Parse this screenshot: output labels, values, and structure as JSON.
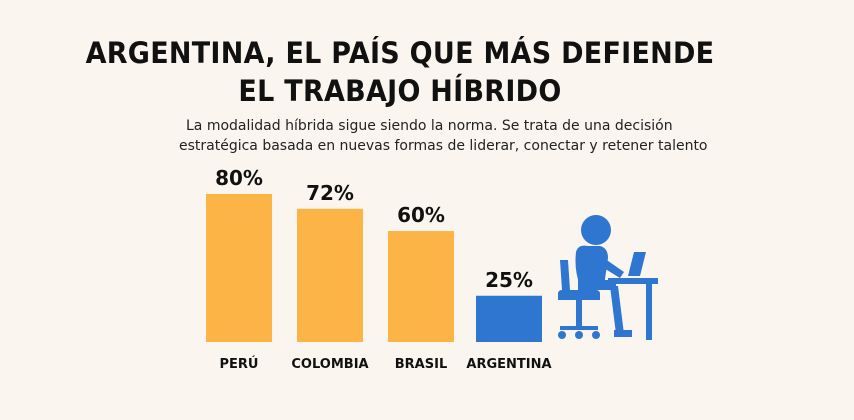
{
  "title": {
    "line1": "ARGENTINA, EL PAÍS QUE MÁS DEFIENDE",
    "line2": "EL TRABAJO HÍBRIDO"
  },
  "subtitle": {
    "line1": "La modalidad híbrida sigue siendo la norma. Se trata de una decisión",
    "line2": "estratégica basada en nuevas formas de liderar, conectar y retener talento"
  },
  "colors": {
    "highlight_bar": "#2e76cf",
    "default_bar": "#fbb445",
    "icon": "#2e76cf"
  },
  "illustration": {
    "icon": "person-at-desk-computer-icon"
  },
  "chart_data": {
    "type": "bar",
    "categories": [
      "PERÚ",
      "COLOMBIA",
      "BRASIL",
      "ARGENTINA"
    ],
    "values": [
      80,
      72,
      60,
      25
    ],
    "value_labels": [
      "80%",
      "72%",
      "60%",
      "25%"
    ],
    "highlight": "ARGENTINA",
    "unit": "%",
    "ylim": [
      0,
      100
    ],
    "grid": false,
    "legend": "none"
  }
}
